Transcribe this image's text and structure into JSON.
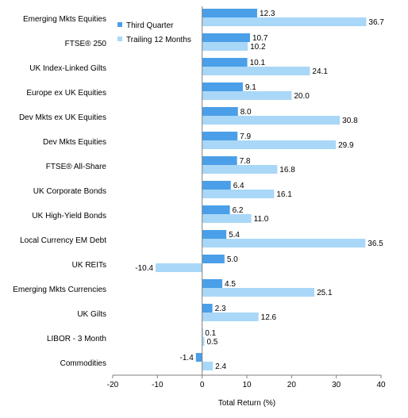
{
  "chart_data": {
    "type": "bar",
    "orientation": "horizontal",
    "categories": [
      "Emerging Mkts Equities",
      "FTSE® 250",
      "UK Index-Linked Gilts",
      "Europe ex UK Equities",
      "Dev Mkts ex UK Equities",
      "Dev Mkts Equities",
      "FTSE® All-Share",
      "UK Corporate Bonds",
      "UK High-Yield Bonds",
      "Local Currency EM Debt",
      "UK REITs",
      "Emerging Mkts Currencies",
      "UK Gilts",
      "LIBOR - 3 Month",
      "Commodities"
    ],
    "series": [
      {
        "name": "Third Quarter",
        "color": "#4A9FE8",
        "values": [
          12.3,
          10.7,
          10.1,
          9.1,
          8.0,
          7.9,
          7.8,
          6.4,
          6.2,
          5.4,
          5.0,
          4.5,
          2.3,
          0.1,
          -1.4
        ],
        "labels": [
          "12.3",
          "10.7",
          "10.1",
          "9.1",
          "8.0",
          "7.9",
          "7.8",
          "6.4",
          "6.2",
          "5.4",
          "5.0",
          "4.5",
          "2.3",
          "0.1",
          "-1.4"
        ]
      },
      {
        "name": "Trailing 12 Months",
        "color": "#A9D7F7",
        "values": [
          36.7,
          10.2,
          24.1,
          20.0,
          30.8,
          29.9,
          16.8,
          16.1,
          11.0,
          36.5,
          -10.4,
          25.1,
          12.6,
          0.5,
          2.4
        ],
        "labels": [
          "36.7",
          "10.2",
          "24.1",
          "20.0",
          "30.8",
          "29.9",
          "16.8",
          "16.1",
          "11.0",
          "36.5",
          "-10.4",
          "25.1",
          "12.6",
          "0.5",
          "2.4"
        ]
      }
    ],
    "xlim": [
      -20,
      40
    ],
    "xticks": [
      -20,
      -10,
      0,
      10,
      20,
      30,
      40
    ],
    "xtick_labels": [
      "-20",
      "-10",
      "0",
      "10",
      "20",
      "30",
      "40"
    ],
    "xlabel": "Total Return (%)",
    "legend_position": "top-left inside plot"
  }
}
